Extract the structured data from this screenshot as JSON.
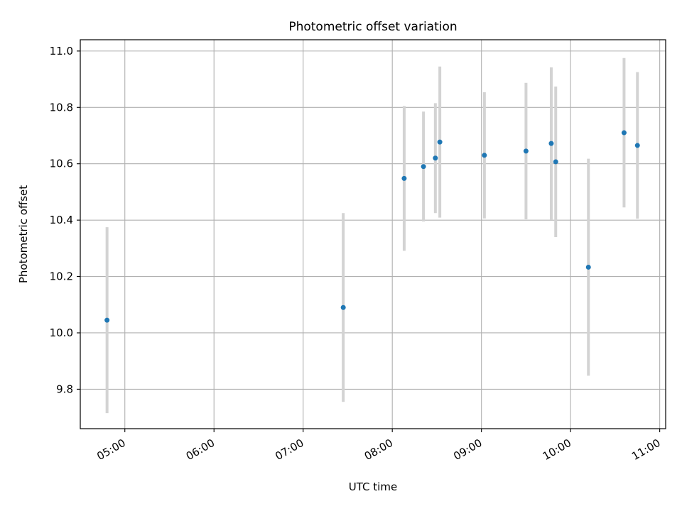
{
  "chart_data": {
    "type": "scatter",
    "title": "Photometric offset variation",
    "xlabel": "UTC time",
    "ylabel": "Photometric offset",
    "x_axis_kind": "time",
    "xlim": [
      "04:30",
      "11:04"
    ],
    "ylim": [
      9.66,
      11.04
    ],
    "grid": true,
    "x_ticks": [
      "05:00",
      "06:00",
      "07:00",
      "08:00",
      "09:00",
      "10:00",
      "11:00"
    ],
    "y_ticks": [
      9.8,
      10.0,
      10.2,
      10.4,
      10.6,
      10.8,
      11.0
    ],
    "y_tick_labels": [
      "9.8",
      "10.0",
      "10.2",
      "10.4",
      "10.6",
      "10.8",
      "11.0"
    ],
    "series": [
      {
        "marker_color": "#1f77b4",
        "errorbar_color": "#d3d3d3",
        "points": [
          {
            "x": "04:48",
            "y": 10.045,
            "err": 0.33
          },
          {
            "x": "07:27",
            "y": 10.09,
            "err": 0.335
          },
          {
            "x": "08:08",
            "y": 10.548,
            "err": 0.257
          },
          {
            "x": "08:21",
            "y": 10.59,
            "err": 0.195
          },
          {
            "x": "08:29",
            "y": 10.62,
            "err": 0.195
          },
          {
            "x": "08:32",
            "y": 10.677,
            "err": 0.268
          },
          {
            "x": "09:02",
            "y": 10.63,
            "err": 0.224
          },
          {
            "x": "09:30",
            "y": 10.645,
            "err": 0.242
          },
          {
            "x": "09:47",
            "y": 10.672,
            "err": 0.27
          },
          {
            "x": "09:50",
            "y": 10.607,
            "err": 0.267
          },
          {
            "x": "10:12",
            "y": 10.233,
            "err": 0.385
          },
          {
            "x": "10:36",
            "y": 10.71,
            "err": 0.265
          },
          {
            "x": "10:45",
            "y": 10.665,
            "err": 0.26
          }
        ]
      }
    ]
  }
}
